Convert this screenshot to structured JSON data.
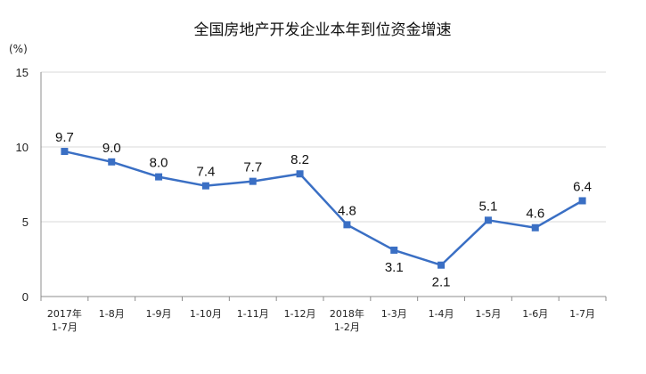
{
  "chart_data": {
    "type": "line",
    "title": "全国房地产开发企业本年到位资金增速",
    "unit_label": "(%)",
    "ylim": [
      0,
      15
    ],
    "yticks": [
      0,
      5,
      10,
      15
    ],
    "grid": true,
    "categories": [
      [
        "2017年",
        "1-7月"
      ],
      [
        "1-8月"
      ],
      [
        "1-9月"
      ],
      [
        "1-10月"
      ],
      [
        "1-11月"
      ],
      [
        "1-12月"
      ],
      [
        "2018年",
        "1-2月"
      ],
      [
        "1-3月"
      ],
      [
        "1-4月"
      ],
      [
        "1-5月"
      ],
      [
        "1-6月"
      ],
      [
        "1-7月"
      ]
    ],
    "series": [
      {
        "values": [
          9.7,
          9.0,
          8.0,
          7.4,
          7.7,
          8.2,
          4.8,
          3.1,
          2.1,
          5.1,
          4.6,
          6.4
        ],
        "labels": [
          "9.7",
          "9.0",
          "8.0",
          "7.4",
          "7.7",
          "8.2",
          "4.8",
          "3.1",
          "2.1",
          "5.1",
          "4.6",
          "6.4"
        ],
        "label_position": [
          "above",
          "above",
          "above",
          "above",
          "above",
          "above",
          "above",
          "below",
          "below",
          "above",
          "above",
          "above"
        ],
        "color": "#3a6fc4"
      }
    ]
  }
}
